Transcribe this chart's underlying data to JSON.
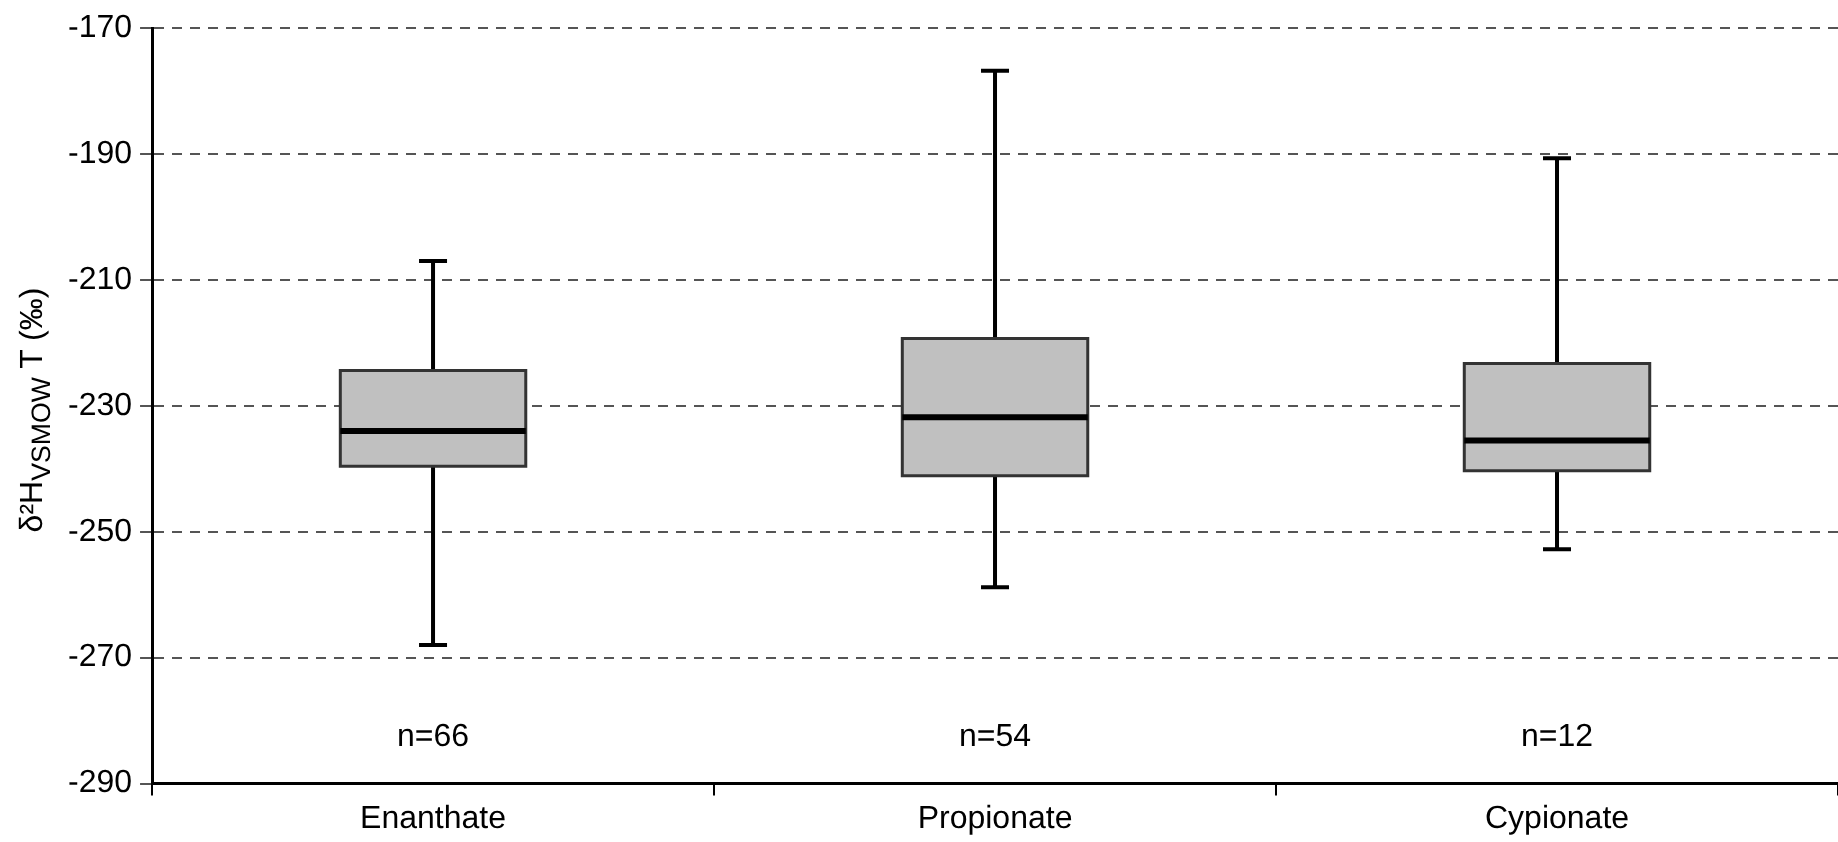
{
  "chart_data": {
    "type": "box",
    "categories": [
      "Enanthate",
      "Propionate",
      "Cypionate"
    ],
    "ylabel": "δ²H$_{VSMOW}$ T (‰)",
    "color": "#c0c0c0",
    "boxes": [
      {
        "low": -268,
        "q1": -239.6,
        "median": -234,
        "q3": -224.4,
        "high": -207
      },
      {
        "low": -258.8,
        "q1": -241.1,
        "median": -231.8,
        "q3": -219.3,
        "high": -176.8
      },
      {
        "low": -252.8,
        "q1": -240.3,
        "median": -235.5,
        "q3": -223.3,
        "high": -190.7
      }
    ],
    "ylim": [
      -290,
      -170
    ],
    "yticks": [
      -290,
      -270,
      -250,
      -230,
      -210,
      -190,
      -170
    ],
    "grid": "y",
    "annotations": [
      "n=66",
      "n=54",
      "n=12"
    ]
  }
}
